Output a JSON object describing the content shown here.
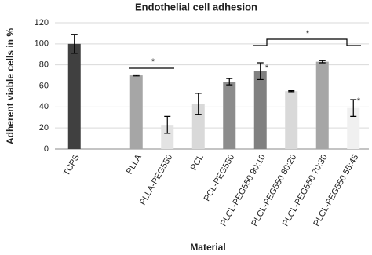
{
  "chart_data": {
    "type": "bar",
    "title": "Endothelial cell adhesion",
    "x_label": "Material",
    "y_label": "Adherent viable cells in %",
    "categories": [
      "TCPS",
      null,
      "PLLA",
      "PLLA-PEG550",
      "PCL",
      "PCL-PEG550",
      "PLCL-PEG550 90:10",
      "PLCL-PEG550 80:20",
      "PLCL-PEG550 70:30",
      "PLCL-PEG550 55:45"
    ],
    "values": [
      100,
      null,
      70,
      23,
      43,
      64,
      74,
      55,
      83,
      39
    ],
    "errors": [
      9,
      null,
      0.5,
      8,
      10,
      3,
      8,
      0.5,
      1,
      8
    ],
    "colors": [
      "#404040",
      null,
      "#a6a6a6",
      "#e3e3e3",
      "#d9d9d9",
      "#8c8c8c",
      "#808080",
      "#d9d9d9",
      "#a6a6a6",
      "#f0f0f0"
    ],
    "ylim": [
      0,
      120
    ],
    "yticks": [
      0,
      20,
      40,
      60,
      80,
      100,
      120
    ],
    "grid": true,
    "annotations": [
      "*",
      "*",
      "*",
      "*"
    ]
  }
}
